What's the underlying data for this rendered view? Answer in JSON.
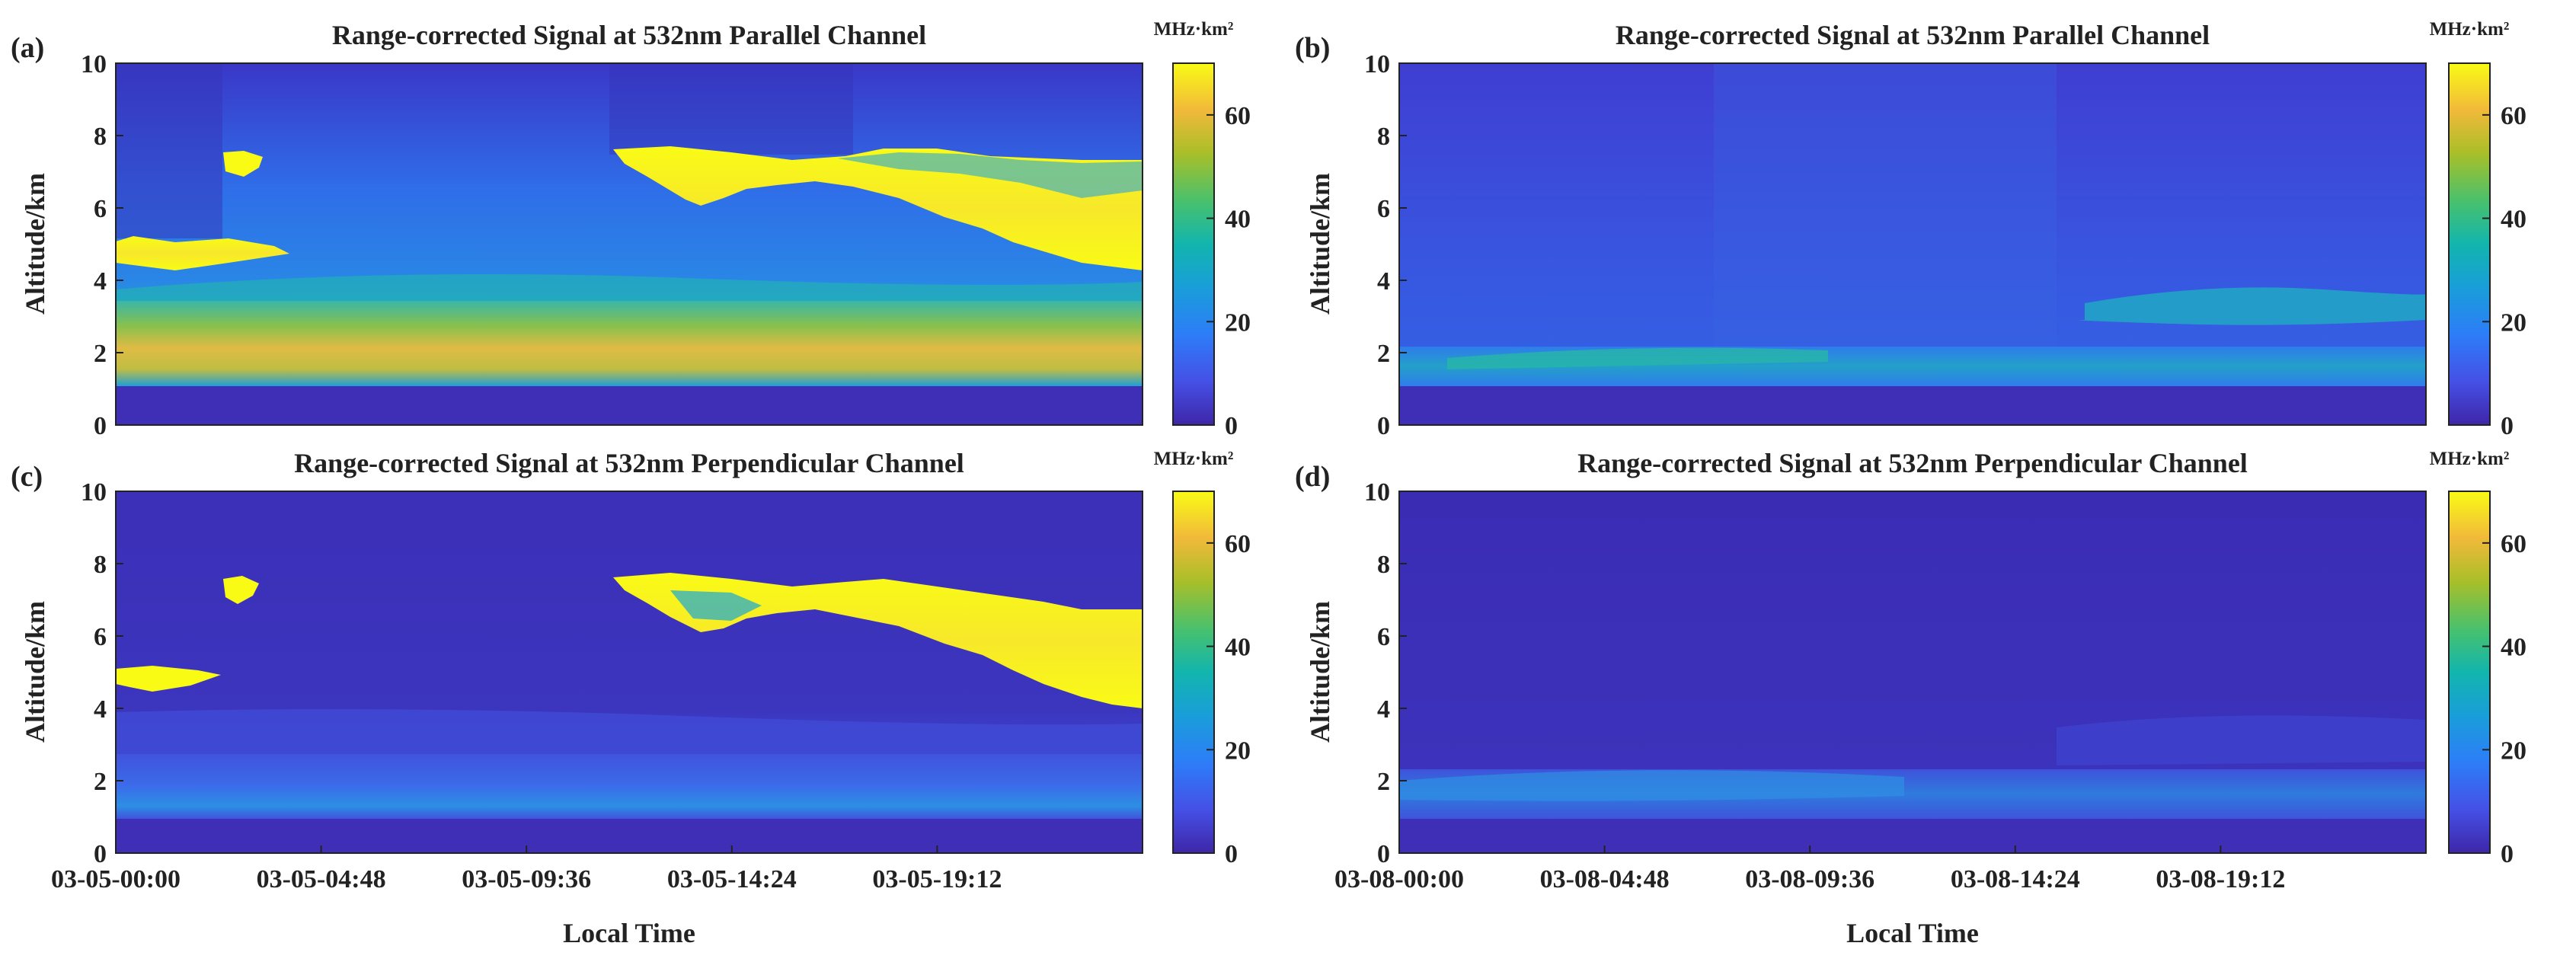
{
  "chart_data": [
    {
      "type": "heatmap",
      "panel_label": "(a)",
      "title": "Range-corrected Signal at 532nm Parallel Channel",
      "ylabel": "Altitude/km",
      "xlabel": "",
      "ylim": [
        0,
        10
      ],
      "yticks": [
        "0",
        "2",
        "4",
        "6",
        "8",
        "10"
      ],
      "xticks": [],
      "colorbar": {
        "unit": "MHz·km²",
        "range": [
          0,
          70
        ],
        "ticks": [
          "0",
          "20",
          "40",
          "60"
        ]
      },
      "features": [
        {
          "name": "boundary layer",
          "altitude_km": [
            1.2,
            3.0
          ],
          "signal": 55
        },
        {
          "name": "cloud",
          "time_frac": [
            0.0,
            0.17
          ],
          "altitude_km": [
            4.5,
            5.1
          ],
          "signal": 70
        },
        {
          "name": "cloud",
          "time_frac": [
            0.1,
            0.14
          ],
          "altitude_km": [
            7.0,
            7.5
          ],
          "signal": 70
        },
        {
          "name": "cloud",
          "time_frac": [
            0.48,
            1.0
          ],
          "altitude_km": [
            4.0,
            7.5
          ],
          "signal": 70
        }
      ]
    },
    {
      "type": "heatmap",
      "panel_label": "(b)",
      "title": "Range-corrected Signal at 532nm Parallel Channel",
      "ylabel": "Altitude/km",
      "xlabel": "",
      "ylim": [
        0,
        10
      ],
      "yticks": [
        "0",
        "2",
        "4",
        "6",
        "8",
        "10"
      ],
      "xticks": [],
      "colorbar": {
        "unit": "MHz·km²",
        "range": [
          0,
          70
        ],
        "ticks": [
          "0",
          "20",
          "40",
          "60"
        ]
      },
      "features": [
        {
          "name": "boundary layer",
          "altitude_km": [
            1.2,
            2.3
          ],
          "signal": 30
        },
        {
          "name": "aerosol layer",
          "time_frac": [
            0.68,
            1.0
          ],
          "altitude_km": [
            2.8,
            3.7
          ],
          "signal": 28
        }
      ]
    },
    {
      "type": "heatmap",
      "panel_label": "(c)",
      "title": "Range-corrected Signal at 532nm Perpendicular Channel",
      "ylabel": "Altitude/km",
      "xlabel": "Local Time",
      "ylim": [
        0,
        10
      ],
      "yticks": [
        "0",
        "2",
        "4",
        "6",
        "8",
        "10"
      ],
      "xticks": [
        "03-05-00:00",
        "03-05-04:48",
        "03-05-09:36",
        "03-05-14:24",
        "03-05-19:12"
      ],
      "colorbar": {
        "unit": "MHz·km²",
        "range": [
          0,
          70
        ],
        "ticks": [
          "0",
          "20",
          "40",
          "60"
        ]
      },
      "features": [
        {
          "name": "boundary layer",
          "altitude_km": [
            0.5,
            3.5
          ],
          "signal": 18
        },
        {
          "name": "cloud",
          "time_frac": [
            0.0,
            0.15
          ],
          "altitude_km": [
            4.5,
            5.1
          ],
          "signal": 70
        },
        {
          "name": "cloud",
          "time_frac": [
            0.1,
            0.14
          ],
          "altitude_km": [
            6.8,
            7.5
          ],
          "signal": 70
        },
        {
          "name": "cloud",
          "time_frac": [
            0.48,
            1.0
          ],
          "altitude_km": [
            4.0,
            7.5
          ],
          "signal": 70
        }
      ]
    },
    {
      "type": "heatmap",
      "panel_label": "(d)",
      "title": "Range-corrected Signal at 532nm Perpendicular Channel",
      "ylabel": "Altitude/km",
      "xlabel": "Local Time",
      "ylim": [
        0,
        10
      ],
      "yticks": [
        "0",
        "2",
        "4",
        "6",
        "8",
        "10"
      ],
      "xticks": [
        "03-08-00:00",
        "03-08-04:48",
        "03-08-09:36",
        "03-08-14:24",
        "03-08-19:12"
      ],
      "colorbar": {
        "unit": "MHz·km²",
        "range": [
          0,
          70
        ],
        "ticks": [
          "0",
          "20",
          "40",
          "60"
        ]
      },
      "features": [
        {
          "name": "boundary layer",
          "altitude_km": [
            1.0,
            2.3
          ],
          "signal": 18
        }
      ]
    }
  ]
}
